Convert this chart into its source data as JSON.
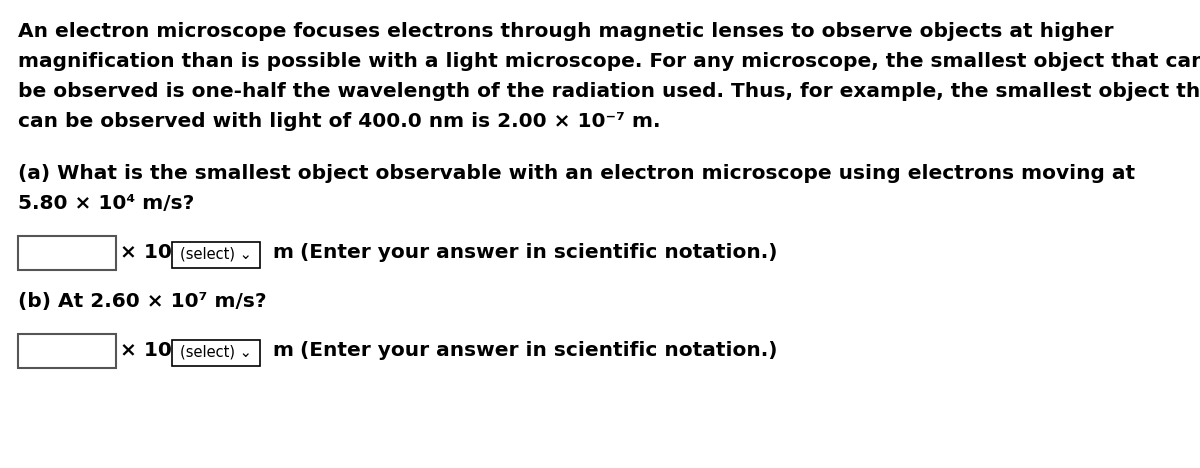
{
  "bg_color": "#ffffff",
  "text_color": "#000000",
  "figsize": [
    12.0,
    4.68
  ],
  "dpi": 100,
  "paragraph1_lines": [
    "An electron microscope focuses electrons through magnetic lenses to observe objects at higher",
    "magnification than is possible with a light microscope. For any microscope, the smallest object that can",
    "be observed is one-half the wavelength of the radiation used. Thus, for example, the smallest object that",
    "can be observed with light of 400.0 nm is 2.00 × 10⁻⁷ m."
  ],
  "paragraph2_line1": "(a) What is the smallest object observable with an electron microscope using electrons moving at",
  "paragraph2_line2": "5.80 × 10⁴ m/s?",
  "paragraph3_line1": "(b) At 2.60 × 10⁷ m/s?",
  "answer_label": "× 10",
  "select_label": "(select) ⌄",
  "m_label": "m",
  "enter_label": "(Enter your answer in scientific notation.)",
  "font_size_main": 14.5,
  "font_size_select": 10.5,
  "box_color": "#ffffff",
  "box_edge_color": "#555555",
  "select_edge_color": "#000000"
}
